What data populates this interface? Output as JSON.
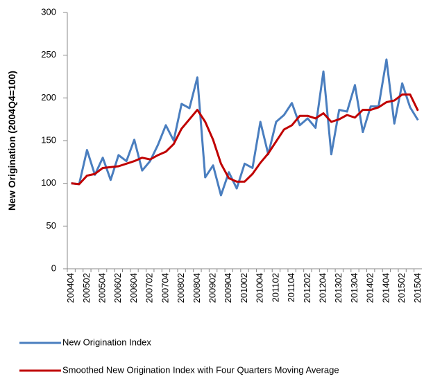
{
  "chart_data": {
    "type": "line",
    "y_label": "New Origination (2004Q4=100)",
    "categories": [
      "200404",
      null,
      "200502",
      null,
      "200504",
      null,
      "200602",
      null,
      "200604",
      null,
      "200702",
      null,
      "200704",
      null,
      "200802",
      null,
      "200804",
      null,
      "200902",
      null,
      "200904",
      null,
      "201002",
      null,
      "201004",
      null,
      "201102",
      null,
      "201104",
      null,
      "201202",
      null,
      "201204",
      null,
      "201302",
      null,
      "201304",
      null,
      "201402",
      null,
      "201404",
      null,
      "201502",
      null,
      "201504"
    ],
    "series": [
      {
        "name": "New Origination Index",
        "color": "#4a7ebf",
        "values": [
          100,
          99,
          139,
          110,
          130,
          104,
          133,
          126,
          151,
          115,
          126,
          145,
          168,
          150,
          193,
          188,
          224,
          107,
          121,
          86,
          113,
          94,
          123,
          118,
          172,
          134,
          172,
          180,
          194,
          168,
          176,
          165,
          231,
          134,
          186,
          184,
          215,
          160,
          190,
          190,
          245,
          170,
          217,
          189,
          174
        ]
      },
      {
        "name": "Smoothed New Origination Index with Four Quarters Moving Average",
        "color": "#c00000",
        "values": [
          100,
          99,
          109,
          111,
          118,
          119,
          120,
          123,
          126,
          130,
          128,
          133,
          137,
          146,
          164,
          175,
          186,
          172,
          151,
          123,
          106,
          102,
          102,
          111,
          124,
          135,
          149,
          163,
          168,
          179,
          179,
          176,
          182,
          172,
          175,
          180,
          177,
          186,
          186,
          189,
          195,
          197,
          204,
          204,
          185
        ]
      }
    ],
    "ylim": [
      0,
      300
    ],
    "yticks": [
      0,
      50,
      100,
      150,
      200,
      250,
      300
    ],
    "grid": false
  }
}
